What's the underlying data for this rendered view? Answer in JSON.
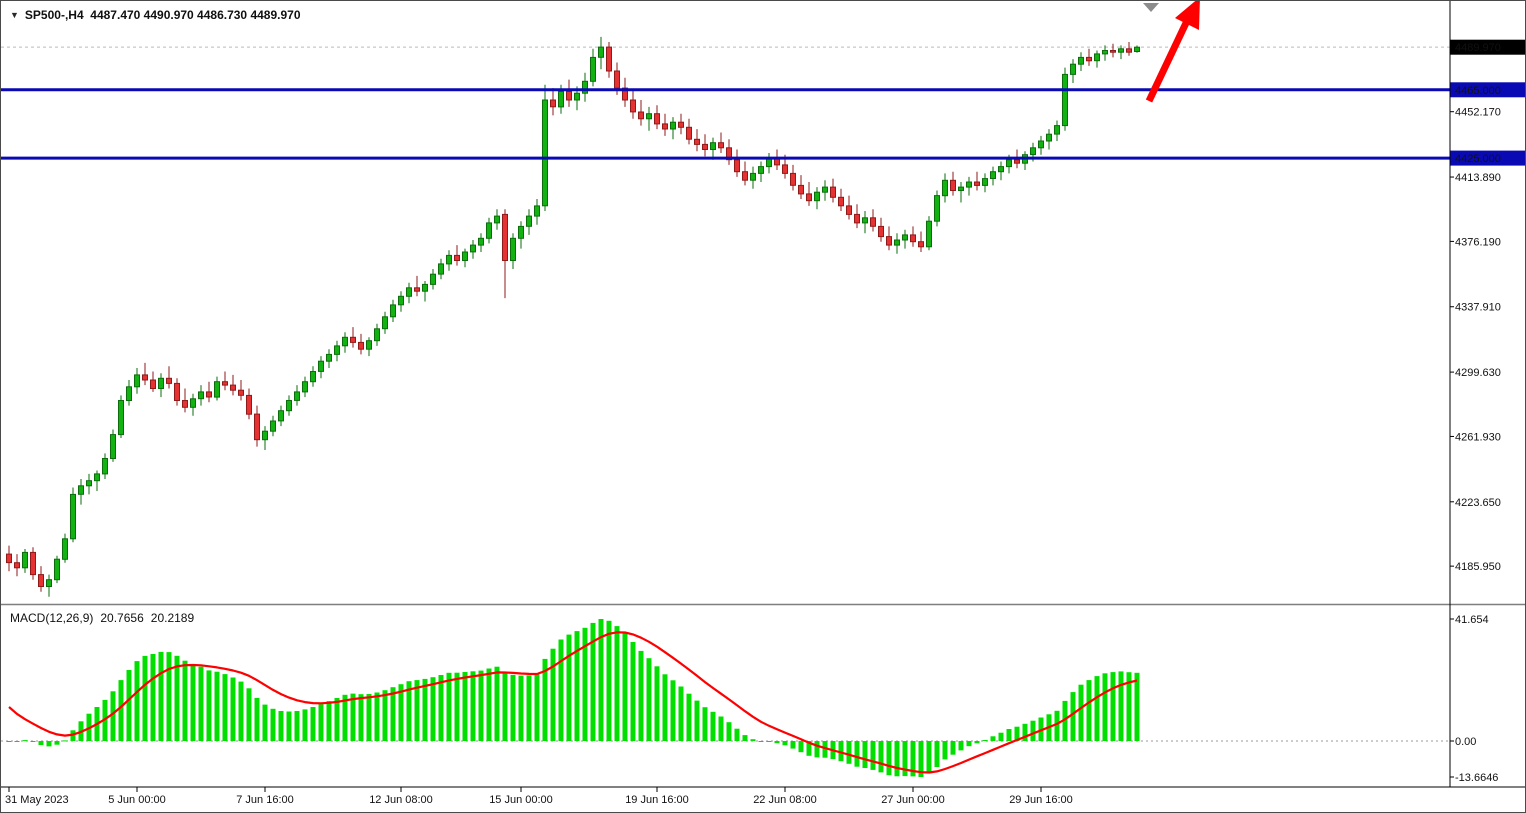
{
  "header": {
    "line": "SP500-,H4  4487.470 4490.970 4486.730 4489.970",
    "symbol": "SP500-",
    "timeframe": "H4"
  },
  "icons": {
    "symbol_dropdown": "▼"
  },
  "indicator_header": {
    "line_label": "MACD(12,26,9)",
    "macd_value": "20.7656",
    "signal_value": "20.2189"
  },
  "colors": {
    "candle_up": "#12B212",
    "candle_up_edge": "#0B6E0B",
    "candle_down": "#E63232",
    "candle_down_edge": "#8F1A1A",
    "hline": "#0A0AB4",
    "macd_bar": "#00DF00",
    "macd_signal": "#FF0000",
    "badge_black_bg": "#000000",
    "badge_blue_bg": "#0A0AB4",
    "badge_text": "#FFFFFF",
    "axis_line": "#000000",
    "separator": "#7F7F7F",
    "current_line": "#BBBBBB",
    "zero_line": "#9A9A9A",
    "arrow": "#FF0000",
    "marker_gray": "#8C8C8C"
  },
  "price_axis": {
    "current_badge": {
      "label": "4489.970",
      "value": 4489.97
    },
    "line_badges": [
      {
        "label": "4465.000",
        "value": 4465.0
      },
      {
        "label": "4425.000",
        "value": 4425.0
      }
    ],
    "gridlines": [
      {
        "label": "4452.170",
        "value": 4452.17
      },
      {
        "label": "4413.890",
        "value": 4413.89
      },
      {
        "label": "4376.190",
        "value": 4376.19
      },
      {
        "label": "4337.910",
        "value": 4337.91
      },
      {
        "label": "4299.630",
        "value": 4299.63
      },
      {
        "label": "4261.930",
        "value": 4261.93
      },
      {
        "label": "4223.650",
        "value": 4223.65
      },
      {
        "label": "4185.950",
        "value": 4185.95
      }
    ]
  },
  "macd_axis": [
    {
      "label": "41.654",
      "anchor": "max"
    },
    {
      "label": "0.00",
      "anchor": "zero"
    },
    {
      "label": "-13.6646",
      "anchor": "min"
    }
  ],
  "time_axis": [
    {
      "label": "31 May 2023",
      "index": 0,
      "align": "left"
    },
    {
      "label": "5 Jun 00:00",
      "index": 16
    },
    {
      "label": "7 Jun 16:00",
      "index": 32
    },
    {
      "label": "12 Jun 08:00",
      "index": 49
    },
    {
      "label": "15 Jun 00:00",
      "index": 64
    },
    {
      "label": "19 Jun 16:00",
      "index": 81
    },
    {
      "label": "22 Jun 08:00",
      "index": 97
    },
    {
      "label": "27 Jun 00:00",
      "index": 113
    },
    {
      "label": "29 Jun 16:00",
      "index": 129
    }
  ],
  "chart_data": {
    "type": "candlestick",
    "title": "SP500-,H4",
    "symbol": "SP500-",
    "timeframe": "H4",
    "last_ohlc": {
      "open": 4487.47,
      "high": 4490.97,
      "low": 4486.73,
      "close": 4489.97
    },
    "horizontal_lines": [
      4465.0,
      4425.0
    ],
    "price_ticks": [
      4452.17,
      4413.89,
      4376.19,
      4337.91,
      4299.63,
      4261.93,
      4223.65,
      4185.95
    ],
    "x_tick_labels": [
      "31 May 2023",
      "5 Jun 00:00",
      "7 Jun 16:00",
      "12 Jun 08:00",
      "15 Jun 00:00",
      "19 Jun 16:00",
      "22 Jun 08:00",
      "27 Jun 00:00",
      "29 Jun 16:00"
    ],
    "indicator": {
      "name": "MACD",
      "fast": 12,
      "slow": 26,
      "signal": 9,
      "shown_values": [
        20.7656,
        20.2189
      ],
      "scale_max": 41.654,
      "scale_min": -13.6646,
      "signal_start": 13.5
    },
    "candles": [
      [
        4193,
        4198,
        4183,
        4188
      ],
      [
        4188,
        4193,
        4180,
        4185
      ],
      [
        4185,
        4196,
        4182,
        4194
      ],
      [
        4194,
        4197,
        4178,
        4181
      ],
      [
        4181,
        4186,
        4171,
        4174
      ],
      [
        4174,
        4181,
        4168,
        4178
      ],
      [
        4178,
        4192,
        4176,
        4190
      ],
      [
        4190,
        4205,
        4188,
        4202
      ],
      [
        4202,
        4232,
        4200,
        4228
      ],
      [
        4228,
        4237,
        4222,
        4233
      ],
      [
        4233,
        4240,
        4228,
        4236
      ],
      [
        4236,
        4242,
        4230,
        4240
      ],
      [
        4240,
        4252,
        4237,
        4249
      ],
      [
        4249,
        4266,
        4247,
        4263
      ],
      [
        4263,
        4286,
        4261,
        4283
      ],
      [
        4283,
        4295,
        4280,
        4291
      ],
      [
        4291,
        4302,
        4287,
        4298
      ],
      [
        4298,
        4305,
        4292,
        4295
      ],
      [
        4295,
        4300,
        4288,
        4290
      ],
      [
        4290,
        4299,
        4285,
        4296
      ],
      [
        4296,
        4303,
        4290,
        4293
      ],
      [
        4293,
        4296,
        4280,
        4283
      ],
      [
        4283,
        4290,
        4276,
        4279
      ],
      [
        4279,
        4287,
        4274,
        4284
      ],
      [
        4284,
        4292,
        4280,
        4288
      ],
      [
        4288,
        4294,
        4282,
        4285
      ],
      [
        4285,
        4297,
        4283,
        4294
      ],
      [
        4294,
        4300,
        4289,
        4292
      ],
      [
        4292,
        4298,
        4286,
        4289
      ],
      [
        4289,
        4295,
        4283,
        4286
      ],
      [
        4286,
        4290,
        4272,
        4275
      ],
      [
        4275,
        4280,
        4256,
        4260
      ],
      [
        4260,
        4268,
        4254,
        4265
      ],
      [
        4265,
        4274,
        4262,
        4271
      ],
      [
        4271,
        4280,
        4268,
        4277
      ],
      [
        4277,
        4286,
        4274,
        4283
      ],
      [
        4283,
        4292,
        4280,
        4288
      ],
      [
        4288,
        4297,
        4285,
        4294
      ],
      [
        4294,
        4303,
        4291,
        4300
      ],
      [
        4300,
        4309,
        4296,
        4306
      ],
      [
        4306,
        4313,
        4302,
        4310
      ],
      [
        4310,
        4318,
        4306,
        4315
      ],
      [
        4315,
        4323,
        4311,
        4320
      ],
      [
        4320,
        4326,
        4314,
        4317
      ],
      [
        4317,
        4322,
        4310,
        4313
      ],
      [
        4313,
        4320,
        4309,
        4318
      ],
      [
        4318,
        4328,
        4315,
        4325
      ],
      [
        4325,
        4335,
        4322,
        4332
      ],
      [
        4332,
        4342,
        4329,
        4339
      ],
      [
        4339,
        4347,
        4335,
        4344
      ],
      [
        4344,
        4352,
        4340,
        4349
      ],
      [
        4349,
        4356,
        4344,
        4347
      ],
      [
        4347,
        4353,
        4341,
        4351
      ],
      [
        4351,
        4360,
        4348,
        4357
      ],
      [
        4357,
        4366,
        4354,
        4363
      ],
      [
        4363,
        4371,
        4359,
        4368
      ],
      [
        4368,
        4374,
        4362,
        4365
      ],
      [
        4365,
        4372,
        4361,
        4370
      ],
      [
        4370,
        4377,
        4366,
        4374
      ],
      [
        4374,
        4381,
        4370,
        4378
      ],
      [
        4378,
        4390,
        4375,
        4387
      ],
      [
        4387,
        4395,
        4383,
        4391
      ],
      [
        4392,
        4395,
        4343,
        4365
      ],
      [
        4365,
        4381,
        4360,
        4378
      ],
      [
        4378,
        4388,
        4372,
        4385
      ],
      [
        4385,
        4395,
        4380,
        4391
      ],
      [
        4391,
        4401,
        4386,
        4397
      ],
      [
        4397,
        4468,
        4394,
        4459
      ],
      [
        4459,
        4466,
        4450,
        4455
      ],
      [
        4455,
        4468,
        4451,
        4464
      ],
      [
        4464,
        4471,
        4455,
        4459
      ],
      [
        4459,
        4467,
        4453,
        4463
      ],
      [
        4463,
        4475,
        4458,
        4470
      ],
      [
        4470,
        4489,
        4467,
        4484
      ],
      [
        4484,
        4496,
        4477,
        4490
      ],
      [
        4490,
        4493,
        4472,
        4476
      ],
      [
        4476,
        4481,
        4462,
        4466
      ],
      [
        4466,
        4472,
        4455,
        4459
      ],
      [
        4459,
        4465,
        4448,
        4452
      ],
      [
        4452,
        4459,
        4444,
        4448
      ],
      [
        4448,
        4455,
        4441,
        4451
      ],
      [
        4451,
        4456,
        4442,
        4445
      ],
      [
        4445,
        4451,
        4438,
        4442
      ],
      [
        4442,
        4449,
        4436,
        4446
      ],
      [
        4446,
        4451,
        4439,
        4443
      ],
      [
        4443,
        4448,
        4433,
        4436
      ],
      [
        4436,
        4442,
        4429,
        4433
      ],
      [
        4433,
        4439,
        4426,
        4430
      ],
      [
        4430,
        4437,
        4424,
        4434
      ],
      [
        4434,
        4440,
        4428,
        4431
      ],
      [
        4431,
        4436,
        4421,
        4424
      ],
      [
        4424,
        4430,
        4414,
        4417
      ],
      [
        4417,
        4423,
        4409,
        4412
      ],
      [
        4412,
        4420,
        4407,
        4416
      ],
      [
        4416,
        4423,
        4411,
        4420
      ],
      [
        4420,
        4428,
        4416,
        4425
      ],
      [
        4425,
        4430,
        4418,
        4421
      ],
      [
        4421,
        4427,
        4413,
        4416
      ],
      [
        4416,
        4421,
        4406,
        4409
      ],
      [
        4409,
        4415,
        4401,
        4404
      ],
      [
        4404,
        4411,
        4397,
        4400
      ],
      [
        4400,
        4408,
        4395,
        4405
      ],
      [
        4405,
        4412,
        4400,
        4408
      ],
      [
        4408,
        4413,
        4399,
        4402
      ],
      [
        4402,
        4407,
        4394,
        4397
      ],
      [
        4397,
        4403,
        4389,
        4392
      ],
      [
        4392,
        4398,
        4384,
        4387
      ],
      [
        4387,
        4394,
        4381,
        4390
      ],
      [
        4390,
        4395,
        4382,
        4385
      ],
      [
        4385,
        4390,
        4376,
        4379
      ],
      [
        4379,
        4385,
        4371,
        4374
      ],
      [
        4374,
        4381,
        4369,
        4377
      ],
      [
        4377,
        4383,
        4372,
        4380
      ],
      [
        4380,
        4385,
        4373,
        4376
      ],
      [
        4376,
        4382,
        4370,
        4373
      ],
      [
        4373,
        4391,
        4371,
        4388
      ],
      [
        4388,
        4406,
        4385,
        4403
      ],
      [
        4403,
        4416,
        4399,
        4412
      ],
      [
        4412,
        4417,
        4403,
        4406
      ],
      [
        4406,
        4411,
        4399,
        4408
      ],
      [
        4408,
        4414,
        4403,
        4411
      ],
      [
        4411,
        4417,
        4406,
        4409
      ],
      [
        4409,
        4416,
        4405,
        4413
      ],
      [
        4413,
        4420,
        4409,
        4417
      ],
      [
        4417,
        4423,
        4412,
        4420
      ],
      [
        4420,
        4427,
        4416,
        4424
      ],
      [
        4424,
        4430,
        4419,
        4422
      ],
      [
        4422,
        4429,
        4418,
        4427
      ],
      [
        4427,
        4434,
        4423,
        4431
      ],
      [
        4431,
        4438,
        4427,
        4435
      ],
      [
        4435,
        4442,
        4430,
        4439
      ],
      [
        4439,
        4447,
        4435,
        4444
      ],
      [
        4444,
        4478,
        4441,
        4474
      ],
      [
        4474,
        4483,
        4469,
        4480
      ],
      [
        4480,
        4487,
        4476,
        4484
      ],
      [
        4484,
        4489,
        4479,
        4482
      ],
      [
        4482,
        4488,
        4478,
        4486
      ],
      [
        4486,
        4491,
        4482,
        4488
      ],
      [
        4488,
        4492,
        4484,
        4487
      ],
      [
        4487,
        4491,
        4483,
        4489
      ],
      [
        4489,
        4493,
        4485,
        4487
      ],
      [
        4487.47,
        4490.97,
        4486.73,
        4489.97
      ]
    ]
  }
}
